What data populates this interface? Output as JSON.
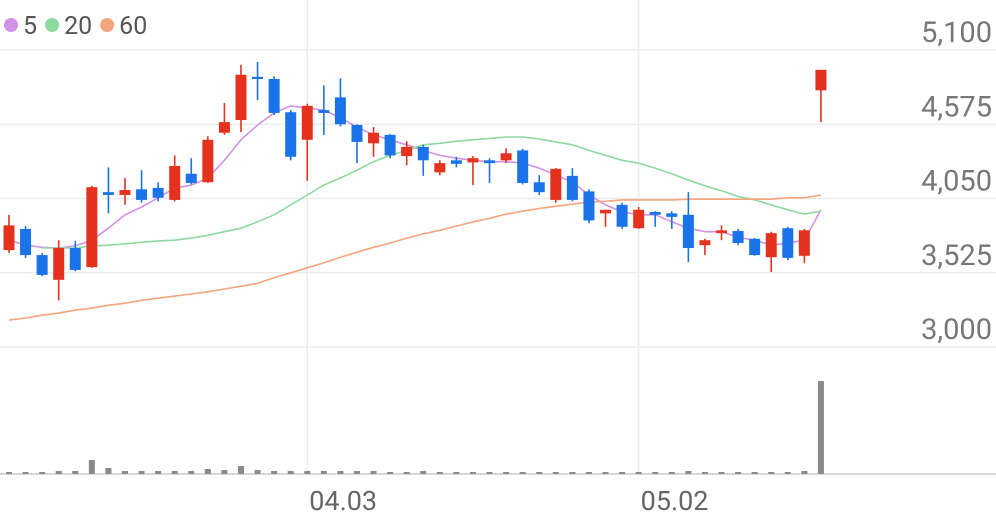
{
  "chart_data": {
    "type": "candlestick",
    "categories": [
      null,
      null,
      null,
      null,
      null,
      null,
      null,
      null,
      null,
      null,
      null,
      null,
      null,
      null,
      null,
      null,
      null,
      null,
      "04.03",
      null,
      null,
      null,
      null,
      null,
      null,
      null,
      null,
      null,
      null,
      null,
      null,
      null,
      null,
      null,
      null,
      null,
      null,
      null,
      "05.02",
      null,
      null,
      null,
      null,
      null,
      null,
      null,
      null,
      null,
      null,
      null
    ],
    "open": [
      3685,
      3835,
      3650,
      3475,
      3700,
      3565,
      4095,
      4075,
      4115,
      4125,
      4040,
      4225,
      4165,
      4515,
      4605,
      4910,
      4895,
      4660,
      4465,
      4675,
      4765,
      4570,
      4440,
      4500,
      4350,
      4415,
      4235,
      4320,
      4305,
      4320,
      4320,
      4390,
      4165,
      4040,
      4210,
      4100,
      3945,
      4005,
      3840,
      3955,
      3945,
      3935,
      3720,
      3805,
      3820,
      3765,
      3635,
      3840,
      3645,
      4815
    ],
    "high": [
      3935,
      3855,
      3665,
      3755,
      3750,
      4140,
      4270,
      4195,
      4250,
      4165,
      4355,
      4335,
      4490,
      4725,
      4995,
      5015,
      4915,
      4675,
      4720,
      4850,
      4900,
      4575,
      4555,
      4505,
      4455,
      4430,
      4320,
      4345,
      4350,
      4335,
      4405,
      4400,
      4215,
      4265,
      4265,
      4115,
      3970,
      4020,
      3990,
      3960,
      3960,
      4095,
      3765,
      3860,
      3835,
      3770,
      3815,
      3850,
      3835,
      4960
    ],
    "low": [
      3665,
      3630,
      3500,
      3330,
      3535,
      3560,
      3945,
      4005,
      4020,
      4030,
      4030,
      4150,
      4160,
      4500,
      4520,
      4745,
      4640,
      4320,
      4175,
      4500,
      4560,
      4300,
      4345,
      4335,
      4285,
      4210,
      4215,
      4270,
      4145,
      4160,
      4300,
      4150,
      4075,
      4020,
      4030,
      3875,
      3850,
      3835,
      3835,
      3850,
      3835,
      3600,
      3650,
      3755,
      3720,
      3645,
      3530,
      3615,
      3595,
      4590
    ],
    "close": [
      3860,
      3650,
      3510,
      3700,
      3545,
      4130,
      4075,
      4110,
      4040,
      4055,
      4280,
      4160,
      4465,
      4590,
      4925,
      4895,
      4655,
      4345,
      4705,
      4655,
      4575,
      4450,
      4515,
      4355,
      4415,
      4320,
      4300,
      4295,
      4335,
      4300,
      4370,
      4160,
      4095,
      4260,
      4040,
      3895,
      3970,
      3850,
      3970,
      3935,
      3920,
      3700,
      3755,
      3825,
      3735,
      3650,
      3805,
      3630,
      3825,
      4960
    ],
    "up_color": "#e5321e",
    "down_color": "#1a73e8",
    "series": [
      {
        "name": "5",
        "color": "#d391e8",
        "values": [
          3755,
          3720,
          3705,
          3700,
          3715,
          3755,
          3840,
          3935,
          3990,
          4055,
          4125,
          4145,
          4195,
          4320,
          4465,
          4570,
          4655,
          4705,
          4690,
          4675,
          4620,
          4555,
          4500,
          4465,
          4430,
          4390,
          4355,
          4335,
          4320,
          4310,
          4310,
          4300,
          4265,
          4215,
          4165,
          4075,
          4005,
          3955,
          3935,
          3935,
          3885,
          3840,
          3815,
          3815,
          3775,
          3755,
          3720,
          3735,
          3755,
          3970
        ]
      },
      {
        "name": "20",
        "color": "#8ed9a0",
        "values": [
          null,
          null,
          3700,
          3700,
          3700,
          3715,
          3720,
          3730,
          3740,
          3750,
          3755,
          3770,
          3790,
          3815,
          3840,
          3885,
          3935,
          4005,
          4075,
          4145,
          4195,
          4250,
          4310,
          4355,
          4390,
          4430,
          4440,
          4455,
          4465,
          4475,
          4485,
          4485,
          4470,
          4450,
          4430,
          4390,
          4355,
          4320,
          4300,
          4265,
          4225,
          4180,
          4140,
          4105,
          4065,
          4040,
          4005,
          3970,
          3940,
          3960
        ]
      },
      {
        "name": "60",
        "color": "#f5a47c",
        "values": [
          3190,
          3205,
          3225,
          3240,
          3260,
          3275,
          3295,
          3310,
          3330,
          3345,
          3360,
          3375,
          3390,
          3410,
          3430,
          3450,
          3490,
          3525,
          3560,
          3595,
          3635,
          3670,
          3705,
          3735,
          3770,
          3800,
          3825,
          3855,
          3885,
          3910,
          3940,
          3960,
          3980,
          3995,
          4010,
          4025,
          4030,
          4040,
          4040,
          4040,
          4040,
          4045,
          4045,
          4045,
          4045,
          4045,
          4045,
          4055,
          4055,
          4075
        ]
      }
    ],
    "ylim": [
      3000,
      5100
    ],
    "yticks": [
      {
        "value": 5100,
        "label": "5,100"
      },
      {
        "value": 4575,
        "label": "4,575"
      },
      {
        "value": 4050,
        "label": "4,050"
      },
      {
        "value": 3525,
        "label": "3,525"
      },
      {
        "value": 3000,
        "label": "3,000"
      }
    ],
    "grid": true,
    "volume": {
      "color": "#8a8a8a",
      "ylim": [
        0,
        127
      ],
      "values": [
        2,
        2,
        2,
        3,
        3,
        14,
        6,
        3,
        3,
        3,
        3,
        3,
        5,
        4,
        8,
        4,
        3,
        3,
        3,
        3,
        3,
        3,
        3,
        2,
        2,
        3,
        2,
        2,
        2,
        2,
        2,
        2,
        2,
        2,
        2,
        2,
        2,
        2,
        2,
        2,
        2,
        3,
        2,
        2,
        2,
        2,
        2,
        2,
        3,
        93
      ]
    }
  }
}
